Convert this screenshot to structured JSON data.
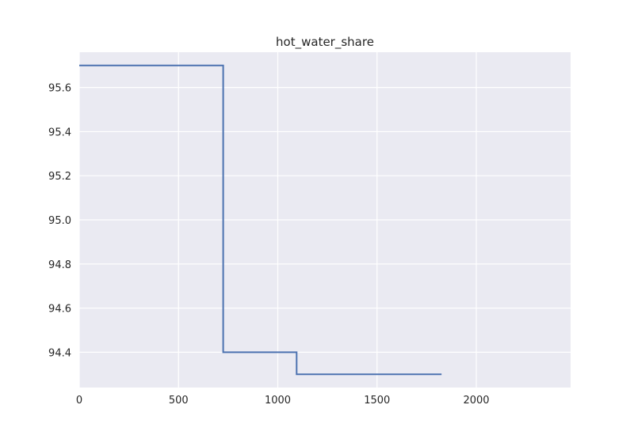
{
  "chart_data": {
    "type": "line",
    "title": "hot_water_share",
    "xlabel": "",
    "ylabel": "",
    "xlim": [
      0,
      2475
    ],
    "ylim": [
      94.24,
      95.76
    ],
    "xticks": [
      0,
      500,
      1000,
      1500,
      2000
    ],
    "xtick_labels": [
      "0",
      "500",
      "1000",
      "1500",
      "2000"
    ],
    "yticks": [
      94.4,
      94.6,
      94.8,
      95.0,
      95.2,
      95.4,
      95.6
    ],
    "ytick_labels": [
      "94.4",
      "94.6",
      "94.8",
      "95.0",
      "95.2",
      "95.4",
      "95.6"
    ],
    "grid": true,
    "series": [
      {
        "color": "#4c72b0",
        "step": "post",
        "x": [
          0,
          725,
          1095,
          1825
        ],
        "y": [
          95.7,
          94.4,
          94.3,
          94.3
        ]
      }
    ]
  },
  "style": {
    "plot_bg": "#eaeaf2",
    "grid_color": "#ffffff",
    "text_color": "#262626"
  }
}
